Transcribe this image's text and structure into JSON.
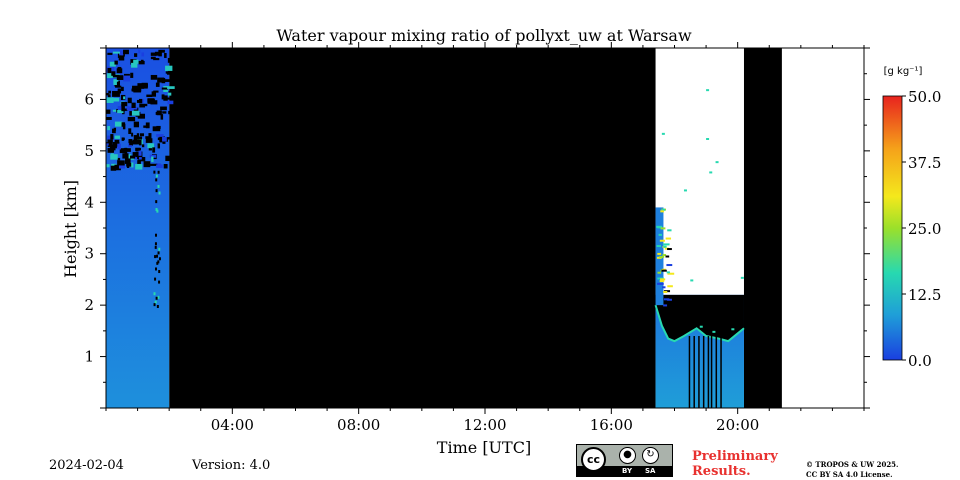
{
  "chart_data": {
    "type": "heatmap",
    "title": "Water vapour mixing ratio of pollyxt_uw at Warsaw",
    "xlabel": "Time [UTC]",
    "ylabel": "Height [km]",
    "xlim_hours": [
      0,
      24
    ],
    "ylim_km": [
      0,
      7
    ],
    "xticks": [
      {
        "value": 4,
        "label": "04:00"
      },
      {
        "value": 8,
        "label": "08:00"
      },
      {
        "value": 12,
        "label": "12:00"
      },
      {
        "value": 16,
        "label": "16:00"
      },
      {
        "value": 20,
        "label": "20:00"
      }
    ],
    "yticks": [
      {
        "value": 1,
        "label": "1"
      },
      {
        "value": 2,
        "label": "2"
      },
      {
        "value": 3,
        "label": "3"
      },
      {
        "value": 4,
        "label": "4"
      },
      {
        "value": 5,
        "label": "5"
      },
      {
        "value": 6,
        "label": "6"
      }
    ],
    "colorbar": {
      "unit_label": "[g kg⁻¹]",
      "range": [
        0,
        50
      ],
      "ticks": [
        {
          "value": 0,
          "label": "0.0"
        },
        {
          "value": 12.5,
          "label": "12.5"
        },
        {
          "value": 25,
          "label": "25.0"
        },
        {
          "value": 37.5,
          "label": "37.5"
        },
        {
          "value": 50,
          "label": "50.0"
        }
      ],
      "colormap": [
        "#1a3fe0",
        "#1f9ed8",
        "#27d9b0",
        "#9be02a",
        "#f4e81c",
        "#f5a21a",
        "#e8231e"
      ]
    },
    "segments": [
      {
        "name": "morning-measurement",
        "start_h": 0.0,
        "end_h": 2.0,
        "top_km": 7.0,
        "mixing_ratio_low": 6,
        "mixing_ratio_high": 9
      },
      {
        "name": "no-signal-period",
        "start_h": 2.0,
        "end_h": 17.4,
        "value": "no data"
      },
      {
        "name": "evening-measurement",
        "start_h": 17.4,
        "end_h": 20.2,
        "top_km": 3.9,
        "mixing_ratio_low": 6,
        "mixing_ratio_high": 14
      },
      {
        "name": "no-signal-late",
        "start_h": 20.2,
        "end_h": 21.4,
        "value": "no data"
      },
      {
        "name": "blank-period",
        "start_h": 21.4,
        "end_h": 24.0,
        "value": "no measurement"
      }
    ],
    "boundary_layer_top_km": [
      {
        "t": 17.4,
        "h": 2.0
      },
      {
        "t": 17.6,
        "h": 1.6
      },
      {
        "t": 17.8,
        "h": 1.35
      },
      {
        "t": 18.0,
        "h": 1.3
      },
      {
        "t": 18.3,
        "h": 1.4
      },
      {
        "t": 18.7,
        "h": 1.55
      },
      {
        "t": 19.0,
        "h": 1.4
      },
      {
        "t": 19.4,
        "h": 1.35
      },
      {
        "t": 19.7,
        "h": 1.3
      },
      {
        "t": 20.0,
        "h": 1.45
      },
      {
        "t": 20.2,
        "h": 1.55
      }
    ]
  },
  "footer": {
    "date": "2024-02-04",
    "version": "Version: 4.0",
    "preliminary_line1": "Preliminary",
    "preliminary_line2": "Results.",
    "copyright_line1": "© TROPOS & UW 2025.",
    "copyright_line2": "CC BY SA 4.0 License.",
    "cc_badge": {
      "cc": "cc",
      "by": "BY",
      "sa": "SA"
    }
  }
}
